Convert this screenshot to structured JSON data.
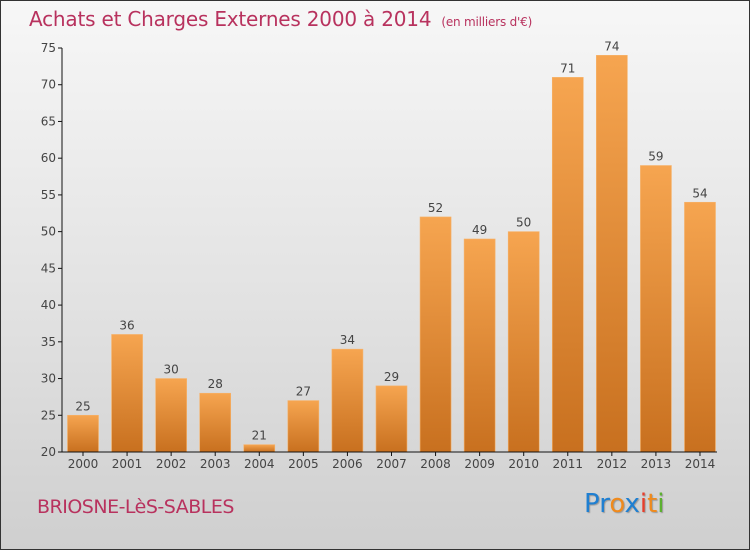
{
  "chart_data": {
    "type": "bar",
    "title": "Achats et Charges Externes 2000 à 2014",
    "subtitle": "(en milliers d'€)",
    "xlabel": "",
    "ylabel": "",
    "categories": [
      "2000",
      "2001",
      "2002",
      "2003",
      "2004",
      "2005",
      "2006",
      "2007",
      "2008",
      "2009",
      "2010",
      "2011",
      "2012",
      "2013",
      "2014"
    ],
    "values": [
      25,
      36,
      30,
      28,
      21,
      27,
      34,
      29,
      52,
      49,
      50,
      71,
      74,
      59,
      54
    ],
    "ylim": [
      20,
      75
    ],
    "yticks": [
      20,
      25,
      30,
      35,
      40,
      45,
      50,
      55,
      60,
      65,
      70,
      75
    ],
    "grid": false,
    "legend": "none",
    "bar_color_top": "#f6a550",
    "bar_color_bottom": "#c8701f"
  },
  "footer": {
    "city": "BRIOSNE-LèS-SABLES",
    "logo_letters": [
      {
        "ch": "P",
        "color": "#1f7fd1"
      },
      {
        "ch": "r",
        "color": "#1f7fd1"
      },
      {
        "ch": "o",
        "color": "#f08a1c"
      },
      {
        "ch": "x",
        "color": "#1f7fd1"
      },
      {
        "ch": "i",
        "color": "#e83d2a"
      },
      {
        "ch": "t",
        "color": "#f08a1c"
      },
      {
        "ch": "i",
        "color": "#5cb030"
      }
    ]
  }
}
